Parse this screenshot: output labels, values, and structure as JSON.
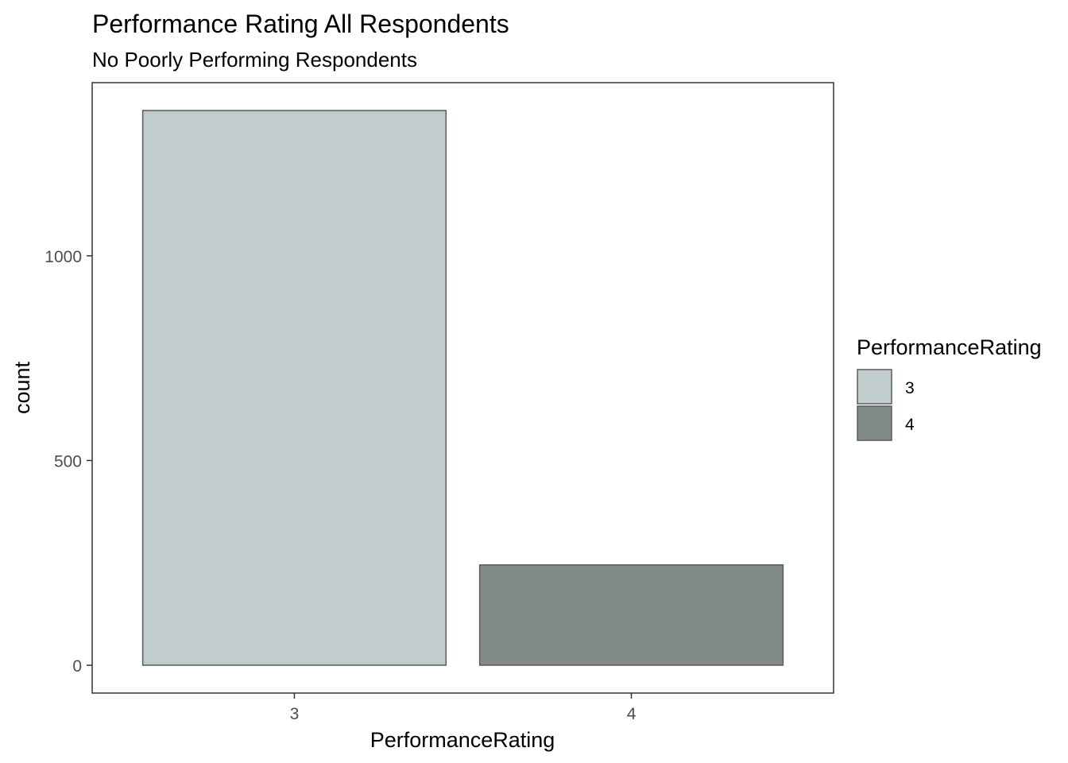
{
  "chart_data": {
    "type": "bar",
    "title": "Performance Rating All Respondents",
    "subtitle": "No Poorly Performing Respondents",
    "xlabel": "PerformanceRating",
    "ylabel": "count",
    "categories": [
      "3",
      "4"
    ],
    "values": [
      1355,
      245
    ],
    "colors": [
      "#c1cccc",
      "#838b89"
    ],
    "bar_outline_color": "#5a5a5a",
    "ylim": [
      -68,
      1423
    ],
    "yticks": [
      0,
      500,
      1000
    ],
    "ytick_labels": [
      "0",
      "500",
      "1000"
    ],
    "grid": false,
    "legend": {
      "title": "PerformanceRating",
      "position": "right",
      "entries": [
        "3",
        "4"
      ]
    }
  }
}
